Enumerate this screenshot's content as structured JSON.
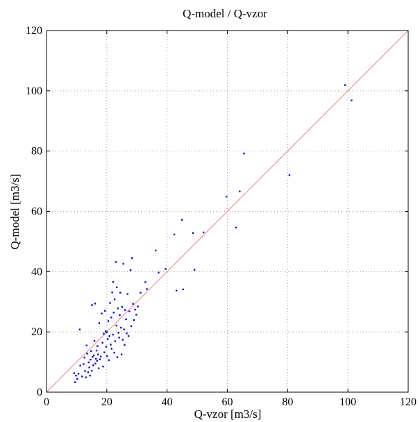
{
  "chart_data": {
    "type": "scatter",
    "title": "Q-model / Q-vzor",
    "xlabel": "Q-vzor   [m3/s]",
    "ylabel": "Q-model   [m3/s]",
    "xlim": [
      0,
      120
    ],
    "ylim": [
      0,
      120
    ],
    "xticks": [
      0,
      20,
      40,
      60,
      80,
      100,
      120
    ],
    "yticks": [
      0,
      20,
      40,
      60,
      80,
      100,
      120
    ],
    "x_tick_labels": [
      "0",
      "20",
      "40",
      "60",
      "80",
      "100",
      "120"
    ],
    "y_tick_labels": [
      "0",
      "20",
      "40",
      "60",
      "80",
      "100",
      "120"
    ],
    "grid": true,
    "reference_line": {
      "x": [
        0,
        120
      ],
      "y": [
        0,
        120
      ],
      "color": "#f08080"
    },
    "point_color": "#0000ee",
    "line_color": "#f08080",
    "series": [
      {
        "points": [
          [
            9.2,
            6.3
          ],
          [
            9.5,
            3.3
          ],
          [
            9.8,
            5.5
          ],
          [
            10.2,
            4.4
          ],
          [
            10.6,
            6.1
          ],
          [
            11.0,
            20.8
          ],
          [
            11.2,
            8.8
          ],
          [
            11.8,
            5.2
          ],
          [
            12.3,
            9.3
          ],
          [
            12.6,
            11.5
          ],
          [
            12.8,
            7.0
          ],
          [
            13.1,
            4.9
          ],
          [
            13.3,
            15.5
          ],
          [
            13.5,
            12.8
          ],
          [
            13.8,
            6.6
          ],
          [
            14.0,
            9.9
          ],
          [
            14.2,
            8.2
          ],
          [
            14.4,
            5.5
          ],
          [
            14.6,
            10.8
          ],
          [
            14.8,
            13.6
          ],
          [
            15.0,
            7.1
          ],
          [
            15.1,
            28.9
          ],
          [
            15.3,
            11.7
          ],
          [
            15.5,
            8.9
          ],
          [
            15.7,
            12.2
          ],
          [
            15.9,
            17.0
          ],
          [
            16.1,
            29.4
          ],
          [
            16.2,
            9.5
          ],
          [
            16.4,
            11.1
          ],
          [
            16.6,
            13.8
          ],
          [
            16.8,
            10.4
          ],
          [
            16.9,
            15.3
          ],
          [
            17.1,
            12.5
          ],
          [
            17.3,
            7.9
          ],
          [
            17.5,
            22.9
          ],
          [
            17.7,
            10.9
          ],
          [
            18.0,
            11.8
          ],
          [
            18.3,
            26.1
          ],
          [
            18.6,
            16.4
          ],
          [
            18.8,
            8.5
          ],
          [
            19.0,
            19.4
          ],
          [
            19.2,
            13.2
          ],
          [
            19.4,
            27.0
          ],
          [
            19.6,
            20.2
          ],
          [
            19.8,
            15.1
          ],
          [
            20.0,
            19.9
          ],
          [
            20.1,
            12.0
          ],
          [
            20.3,
            17.6
          ],
          [
            20.5,
            23.6
          ],
          [
            20.7,
            10.6
          ],
          [
            20.9,
            18.6
          ],
          [
            21.1,
            29.6
          ],
          [
            21.3,
            15.8
          ],
          [
            21.5,
            24.8
          ],
          [
            21.6,
            14.4
          ],
          [
            21.8,
            33.1
          ],
          [
            22.0,
            19.1
          ],
          [
            22.1,
            36.6
          ],
          [
            22.3,
            26.4
          ],
          [
            22.5,
            13.1
          ],
          [
            22.6,
            30.8
          ],
          [
            22.8,
            16.9
          ],
          [
            23.0,
            43.2
          ],
          [
            23.2,
            22.1
          ],
          [
            23.3,
            34.8
          ],
          [
            23.5,
            11.6
          ],
          [
            23.7,
            27.8
          ],
          [
            23.9,
            19.7
          ],
          [
            24.1,
            18.1
          ],
          [
            24.3,
            25.6
          ],
          [
            24.5,
            33.0
          ],
          [
            24.7,
            21.4
          ],
          [
            24.9,
            12.5
          ],
          [
            25.1,
            28.3
          ],
          [
            25.3,
            17.4
          ],
          [
            25.5,
            42.6
          ],
          [
            25.7,
            20.8
          ],
          [
            25.9,
            15.7
          ],
          [
            26.1,
            27.3
          ],
          [
            26.4,
            24.2
          ],
          [
            26.6,
            19.5
          ],
          [
            26.9,
            32.6
          ],
          [
            27.2,
            18.6
          ],
          [
            27.5,
            26.8
          ],
          [
            27.9,
            40.5
          ],
          [
            28.1,
            21.9
          ],
          [
            28.4,
            44.5
          ],
          [
            28.7,
            29.3
          ],
          [
            29.0,
            23.9
          ],
          [
            29.4,
            27.4
          ],
          [
            29.8,
            25.7
          ],
          [
            30.3,
            28.4
          ],
          [
            31.2,
            33.0
          ],
          [
            32.8,
            36.5
          ],
          [
            33.3,
            34.2
          ],
          [
            36.2,
            47.0
          ],
          [
            37.2,
            39.7
          ],
          [
            39.5,
            40.9
          ],
          [
            42.4,
            52.3
          ],
          [
            43.1,
            33.7
          ],
          [
            44.9,
            57.2
          ],
          [
            45.3,
            34.1
          ],
          [
            48.6,
            52.8
          ],
          [
            49.1,
            40.6
          ],
          [
            52.1,
            53.0
          ],
          [
            59.7,
            64.9
          ],
          [
            62.9,
            54.6
          ],
          [
            64.1,
            66.6
          ],
          [
            65.5,
            79.2
          ],
          [
            80.6,
            72.0
          ],
          [
            99.1,
            101.9
          ],
          [
            101.2,
            96.8
          ]
        ]
      }
    ]
  }
}
